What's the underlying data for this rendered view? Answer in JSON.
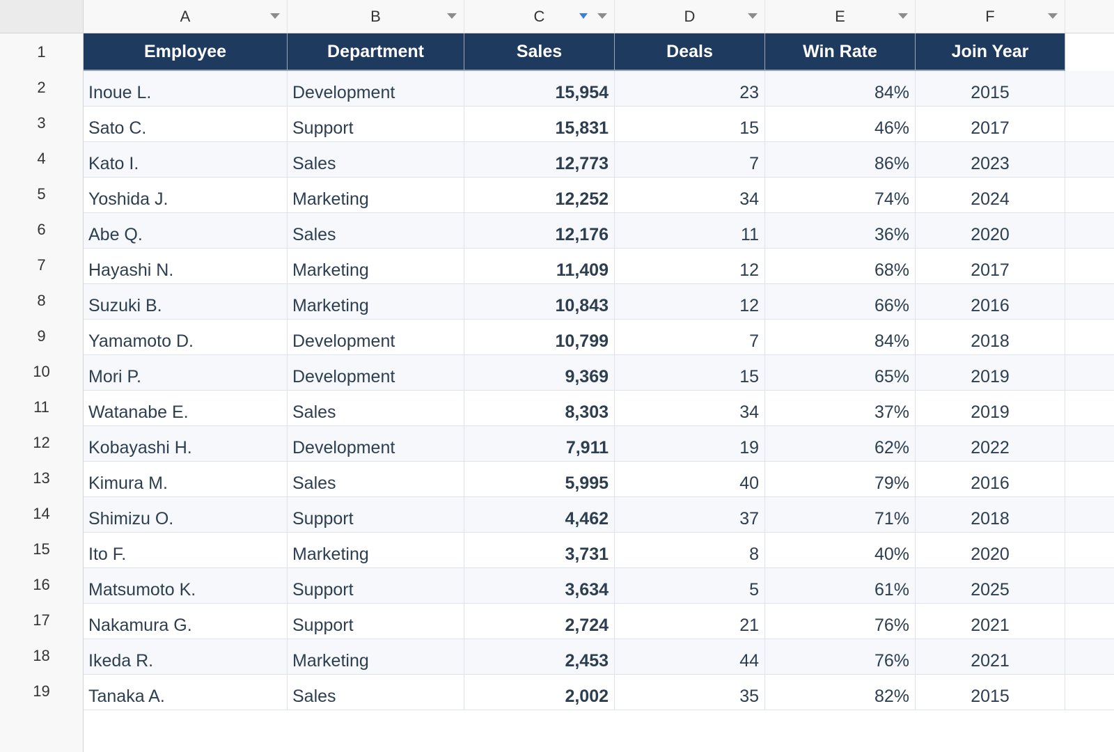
{
  "columns": [
    {
      "letter": "A",
      "header": "Employee"
    },
    {
      "letter": "B",
      "header": "Department"
    },
    {
      "letter": "C",
      "header": "Sales",
      "sorted": "descending"
    },
    {
      "letter": "D",
      "header": "Deals"
    },
    {
      "letter": "E",
      "header": "Win Rate"
    },
    {
      "letter": "F",
      "header": "Join Year"
    }
  ],
  "row_numbers": [
    "1",
    "2",
    "3",
    "4",
    "5",
    "6",
    "7",
    "8",
    "9",
    "10",
    "11",
    "12",
    "13",
    "14",
    "15",
    "16",
    "17",
    "18",
    "19"
  ],
  "rows": [
    {
      "employee": "Inoue L.",
      "department": "Development",
      "sales": "15,954",
      "deals": "23",
      "win_rate": "84%",
      "join_year": "2015"
    },
    {
      "employee": "Sato C.",
      "department": "Support",
      "sales": "15,831",
      "deals": "15",
      "win_rate": "46%",
      "join_year": "2017"
    },
    {
      "employee": "Kato I.",
      "department": "Sales",
      "sales": "12,773",
      "deals": "7",
      "win_rate": "86%",
      "join_year": "2023"
    },
    {
      "employee": "Yoshida J.",
      "department": "Marketing",
      "sales": "12,252",
      "deals": "34",
      "win_rate": "74%",
      "join_year": "2024"
    },
    {
      "employee": "Abe Q.",
      "department": "Sales",
      "sales": "12,176",
      "deals": "11",
      "win_rate": "36%",
      "join_year": "2020"
    },
    {
      "employee": "Hayashi N.",
      "department": "Marketing",
      "sales": "11,409",
      "deals": "12",
      "win_rate": "68%",
      "join_year": "2017"
    },
    {
      "employee": "Suzuki B.",
      "department": "Marketing",
      "sales": "10,843",
      "deals": "12",
      "win_rate": "66%",
      "join_year": "2016"
    },
    {
      "employee": "Yamamoto D.",
      "department": "Development",
      "sales": "10,799",
      "deals": "7",
      "win_rate": "84%",
      "join_year": "2018"
    },
    {
      "employee": "Mori P.",
      "department": "Development",
      "sales": "9,369",
      "deals": "15",
      "win_rate": "65%",
      "join_year": "2019"
    },
    {
      "employee": "Watanabe E.",
      "department": "Sales",
      "sales": "8,303",
      "deals": "34",
      "win_rate": "37%",
      "join_year": "2019"
    },
    {
      "employee": "Kobayashi H.",
      "department": "Development",
      "sales": "7,911",
      "deals": "19",
      "win_rate": "62%",
      "join_year": "2022"
    },
    {
      "employee": "Kimura M.",
      "department": "Sales",
      "sales": "5,995",
      "deals": "40",
      "win_rate": "79%",
      "join_year": "2016"
    },
    {
      "employee": "Shimizu O.",
      "department": "Support",
      "sales": "4,462",
      "deals": "37",
      "win_rate": "71%",
      "join_year": "2018"
    },
    {
      "employee": "Ito F.",
      "department": "Marketing",
      "sales": "3,731",
      "deals": "8",
      "win_rate": "40%",
      "join_year": "2020"
    },
    {
      "employee": "Matsumoto K.",
      "department": "Support",
      "sales": "3,634",
      "deals": "5",
      "win_rate": "61%",
      "join_year": "2025"
    },
    {
      "employee": "Nakamura G.",
      "department": "Support",
      "sales": "2,724",
      "deals": "21",
      "win_rate": "76%",
      "join_year": "2021"
    },
    {
      "employee": "Ikeda R.",
      "department": "Marketing",
      "sales": "2,453",
      "deals": "44",
      "win_rate": "76%",
      "join_year": "2021"
    },
    {
      "employee": "Tanaka A.",
      "department": "Sales",
      "sales": "2,002",
      "deals": "35",
      "win_rate": "82%",
      "join_year": "2015"
    }
  ],
  "colors": {
    "header_bg": "#1f3a5f",
    "header_text": "#ffffff",
    "body_text": "#2c3e50",
    "stripe": "#f6f8fb",
    "sort_indicator": "#3b7ddd"
  }
}
